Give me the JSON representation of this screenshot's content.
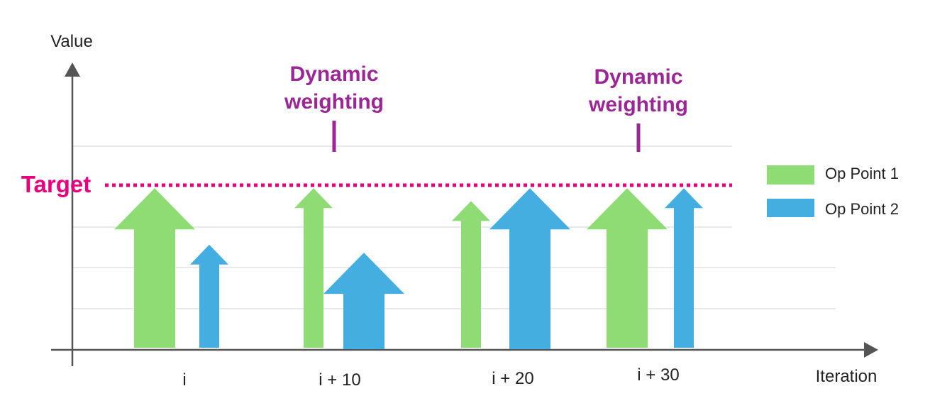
{
  "axes": {
    "y_label": "Value",
    "x_label": "Iteration"
  },
  "target": {
    "label": "Target",
    "color": "#e6007e"
  },
  "annotations": [
    {
      "line1": "Dynamic",
      "line2": "weighting",
      "at": "i + 10"
    },
    {
      "line1": "Dynamic",
      "line2": "weighting",
      "at": "i + 30"
    }
  ],
  "annotation_color": "#9b2695",
  "legend": [
    {
      "label": "Op Point 1",
      "color": "#8fdc74"
    },
    {
      "label": "Op Point 2",
      "color": "#45aee0"
    }
  ],
  "iterations": [
    "i",
    "i + 10",
    "i + 20",
    "i + 30"
  ],
  "arrows": [
    {
      "iteration": "i",
      "series": "Op Point 1",
      "level": 0.99,
      "weight": "heavy"
    },
    {
      "iteration": "i",
      "series": "Op Point 2",
      "level": 0.64,
      "weight": "light"
    },
    {
      "iteration": "i + 10",
      "series": "Op Point 1",
      "level": 0.99,
      "weight": "light"
    },
    {
      "iteration": "i + 10",
      "series": "Op Point 2",
      "level": 0.59,
      "weight": "heavy"
    },
    {
      "iteration": "i + 20",
      "series": "Op Point 1",
      "level": 0.91,
      "weight": "light"
    },
    {
      "iteration": "i + 20",
      "series": "Op Point 2",
      "level": 0.99,
      "weight": "heavy"
    },
    {
      "iteration": "i + 30",
      "series": "Op Point 1",
      "level": 0.99,
      "weight": "heavy"
    },
    {
      "iteration": "i + 30",
      "series": "Op Point 2",
      "level": 0.99,
      "weight": "light"
    }
  ],
  "colors": {
    "axis": "#555555",
    "grid": "#d9d9d9"
  }
}
